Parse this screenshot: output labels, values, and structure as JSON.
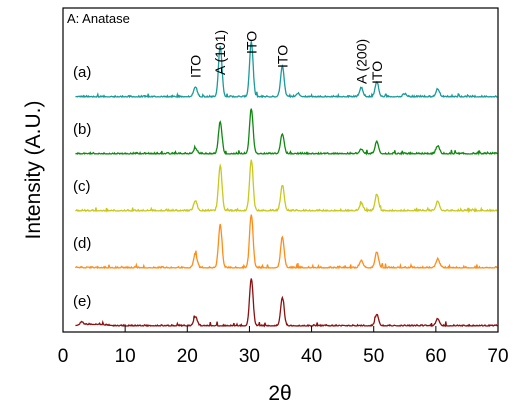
{
  "chart_data": {
    "type": "line",
    "title": "",
    "xlabel": "2θ",
    "ylabel": "Intensity (A.U.)",
    "xlim": [
      0,
      70
    ],
    "x_ticks": [
      "0",
      "10",
      "20",
      "30",
      "40",
      "50",
      "60",
      "70"
    ],
    "legend_note": "A: Anatase",
    "grid": false,
    "annotations": [
      {
        "text": "ITO",
        "x": 21.3
      },
      {
        "text": "A (101)",
        "x": 25.3
      },
      {
        "text": "ITO",
        "x": 30.3
      },
      {
        "text": "ITO",
        "x": 35.3
      },
      {
        "text": "A (200)",
        "x": 48.0
      },
      {
        "text": "ITO",
        "x": 50.5
      }
    ],
    "series": [
      {
        "label": "(a)",
        "color": "#1a9a9a",
        "peaks": [
          [
            21.3,
            0.18
          ],
          [
            25.3,
            0.92
          ],
          [
            30.3,
            1.0
          ],
          [
            35.3,
            0.56
          ],
          [
            37.8,
            0.06
          ],
          [
            48.0,
            0.16
          ],
          [
            50.5,
            0.27
          ],
          [
            55.0,
            0.05
          ],
          [
            60.3,
            0.14
          ]
        ]
      },
      {
        "label": "(b)",
        "color": "#108810",
        "peaks": [
          [
            21.3,
            0.1
          ],
          [
            25.3,
            0.58
          ],
          [
            30.3,
            0.82
          ],
          [
            35.3,
            0.36
          ],
          [
            48.0,
            0.08
          ],
          [
            50.5,
            0.22
          ],
          [
            60.3,
            0.14
          ]
        ]
      },
      {
        "label": "(c)",
        "color": "#c8c81e",
        "peaks": [
          [
            21.3,
            0.18
          ],
          [
            25.3,
            0.82
          ],
          [
            30.3,
            0.92
          ],
          [
            35.3,
            0.46
          ],
          [
            48.0,
            0.13
          ],
          [
            50.5,
            0.3
          ],
          [
            60.3,
            0.17
          ]
        ]
      },
      {
        "label": "(d)",
        "color": "#ff8c1a",
        "peaks": [
          [
            21.3,
            0.25
          ],
          [
            25.3,
            0.78
          ],
          [
            30.3,
            0.97
          ],
          [
            35.3,
            0.56
          ],
          [
            48.0,
            0.13
          ],
          [
            50.5,
            0.28
          ],
          [
            60.3,
            0.16
          ]
        ]
      },
      {
        "label": "(e)",
        "color": "#8b1010",
        "peaks": [
          [
            3.0,
            0.05
          ],
          [
            21.3,
            0.18
          ],
          [
            30.3,
            0.95
          ],
          [
            35.3,
            0.56
          ],
          [
            50.5,
            0.23
          ],
          [
            60.3,
            0.14
          ]
        ]
      }
    ]
  }
}
